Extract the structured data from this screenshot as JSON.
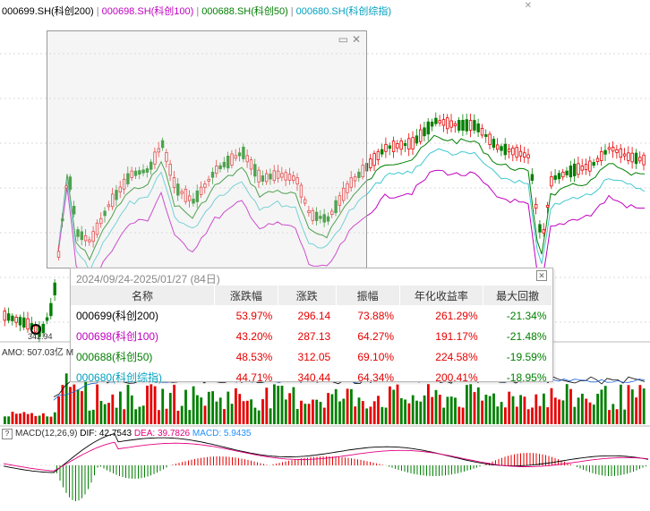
{
  "header": {
    "tickers": [
      {
        "label": "000699.SH(科创200)",
        "color": "#000000"
      },
      {
        "label": "000698.SH(科创100)",
        "color": "#c000c0"
      },
      {
        "label": "000688.SH(科创50)",
        "color": "#007f00"
      },
      {
        "label": "000680.SH(科创综指)",
        "color": "#00a0c0"
      }
    ],
    "separator": "|"
  },
  "price_label": "342.94",
  "stats_panel": {
    "title": "2024/09/24-2025/01/27 (84日)",
    "columns": [
      "名称",
      "涨跌幅",
      "涨跌",
      "振幅",
      "年化收益率",
      "最大回撤"
    ],
    "rows": [
      {
        "name": "000699(科创200)",
        "color": "#000000",
        "change_pct": "53.97%",
        "change": "296.14",
        "amplitude": "73.88%",
        "annualized": "261.29%",
        "max_drawdown": "-21.34%"
      },
      {
        "name": "000698(科创100)",
        "color": "#c000c0",
        "change_pct": "43.20%",
        "change": "287.13",
        "amplitude": "64.27%",
        "annualized": "191.17%",
        "max_drawdown": "-21.48%"
      },
      {
        "name": "000688(科创50)",
        "color": "#007f00",
        "change_pct": "48.53%",
        "change": "312.05",
        "amplitude": "69.10%",
        "annualized": "224.58%",
        "max_drawdown": "-19.59%"
      },
      {
        "name": "000680(科创综指)",
        "color": "#00a0c0",
        "change_pct": "44.71%",
        "change": "340.44",
        "amplitude": "64.34%",
        "annualized": "200.41%",
        "max_drawdown": "-18.95%"
      }
    ]
  },
  "volume": {
    "label": "AMO: 507.03亿",
    "suffix": "M"
  },
  "macd": {
    "label": "MACD(12,26,9)",
    "dif": "DIF: 42.7543",
    "dea": "DEA: 39.7826",
    "macd": "MACD: 5.9435"
  },
  "colors": {
    "up": "#e60000",
    "down": "#008000",
    "line_kc100": "#c000c0",
    "line_kc50": "#007f00",
    "line_kczz": "#40c8d0"
  },
  "chart_data": {
    "type": "candlestick",
    "series": [
      {
        "name": "000699.SH(科创200)"
      },
      {
        "name": "000698.SH(科创100)"
      },
      {
        "name": "000688.SH(科创50)"
      },
      {
        "name": "000680.SH(科创综指)"
      }
    ]
  }
}
